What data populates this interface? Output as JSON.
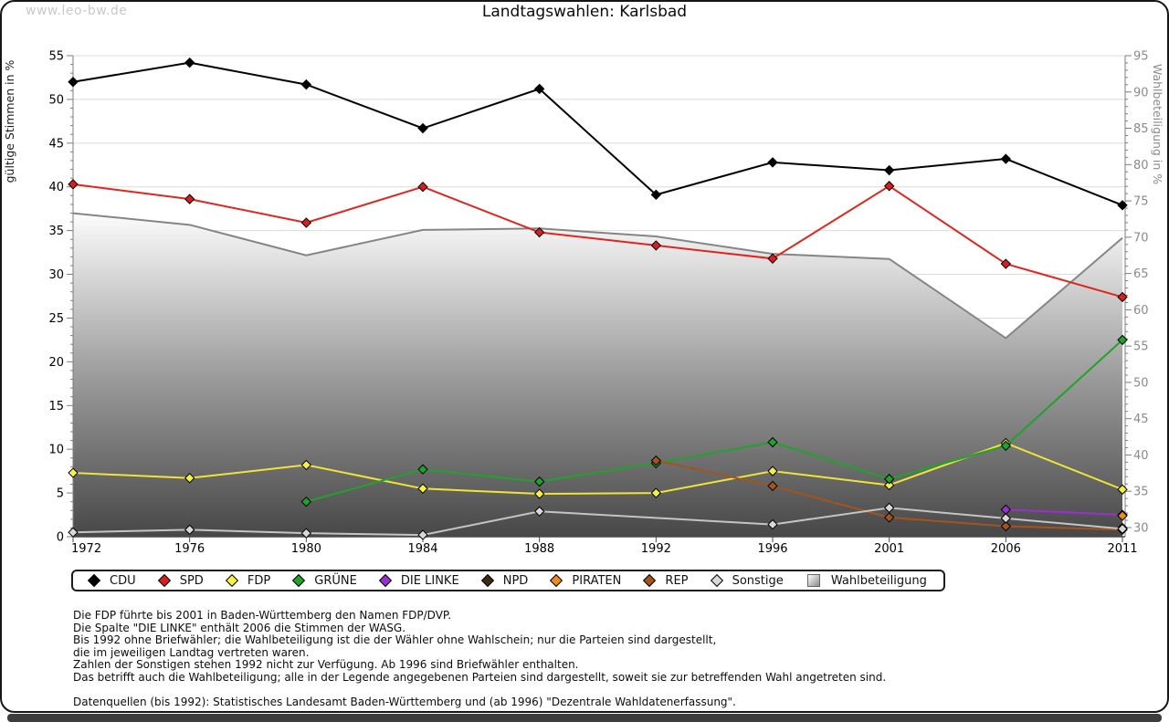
{
  "watermark": "www.leo-bw.de",
  "title": "Landtagswahlen: Karlsbad",
  "chart_data": {
    "type": "line",
    "categories": [
      "1972",
      "1976",
      "1980",
      "1984",
      "1988",
      "1992",
      "1996",
      "2001",
      "2006",
      "2011"
    ],
    "left_axis": {
      "label": "gültige Stimmen in %",
      "min": 0,
      "max": 55,
      "ticks": [
        0,
        5,
        10,
        15,
        20,
        25,
        30,
        35,
        40,
        45,
        50,
        55
      ]
    },
    "right_axis": {
      "label": "Wahlbeteiligung in %",
      "min": 30,
      "max": 95,
      "ticks": [
        30,
        35,
        40,
        45,
        50,
        55,
        60,
        65,
        70,
        75,
        80,
        85,
        90,
        95
      ]
    },
    "grid": true,
    "legend_position": "bottom",
    "series": [
      {
        "name": "CDU",
        "color": "#000000",
        "fill": "#000000",
        "axis": "left",
        "values": [
          52.0,
          54.2,
          51.7,
          46.7,
          51.2,
          39.1,
          42.8,
          41.9,
          43.2,
          37.9
        ]
      },
      {
        "name": "SPD",
        "color": "#e0251f",
        "fill": "#d81e1e",
        "axis": "left",
        "values": [
          40.3,
          38.6,
          35.9,
          40.0,
          34.8,
          33.3,
          31.8,
          40.1,
          31.2,
          27.4
        ]
      },
      {
        "name": "FDP",
        "color": "#f0e438",
        "fill": "#f8ef44",
        "axis": "left",
        "values": [
          7.3,
          6.7,
          8.2,
          5.5,
          4.9,
          5.0,
          7.5,
          5.9,
          10.7,
          5.4
        ]
      },
      {
        "name": "GRÜNE",
        "color": "#1fa32a",
        "fill": "#1fa32a",
        "axis": "left",
        "values": [
          null,
          null,
          4.0,
          7.7,
          6.3,
          8.4,
          10.8,
          6.6,
          10.4,
          22.5
        ]
      },
      {
        "name": "DIE LINKE",
        "color": "#9b30d0",
        "fill": "#9b30d0",
        "axis": "left",
        "values": [
          null,
          null,
          null,
          null,
          null,
          null,
          null,
          null,
          3.1,
          2.5
        ]
      },
      {
        "name": "NPD",
        "color": "#3f2a12",
        "fill": "#3f2a12",
        "axis": "left",
        "values": [
          null,
          null,
          null,
          null,
          null,
          null,
          null,
          null,
          null,
          1.0
        ]
      },
      {
        "name": "PIRATEN",
        "color": "#f08a1d",
        "fill": "#f08a1d",
        "axis": "left",
        "values": [
          null,
          null,
          null,
          null,
          null,
          null,
          null,
          null,
          null,
          2.4
        ]
      },
      {
        "name": "REP",
        "color": "#a3541d",
        "fill": "#a3541d",
        "axis": "left",
        "values": [
          null,
          null,
          null,
          null,
          null,
          8.7,
          5.8,
          2.2,
          1.2,
          0.8
        ]
      },
      {
        "name": "Sonstige",
        "color": "#c4c4c4",
        "fill": "#d8d8d8",
        "axis": "left",
        "values": [
          0.5,
          0.8,
          0.4,
          0.2,
          2.9,
          null,
          1.4,
          3.3,
          2.1,
          0.9
        ]
      }
    ],
    "area_series": {
      "name": "Wahlbeteiligung",
      "axis": "right",
      "line_color": "#858585",
      "gradient_top": "#ffffff",
      "gradient_mid": "#9e9e9e",
      "gradient_bottom": "#474747",
      "values": [
        73.3,
        71.7,
        67.5,
        71.0,
        71.2,
        70.1,
        67.7,
        67.0,
        56.1,
        69.9
      ]
    }
  },
  "colors": {
    "grid": "#dcdcdc",
    "axis_line": "#7d7d7d",
    "bottom_axis_line": "#4a4a4a",
    "left_tick_text": "#000000",
    "right_tick_text": "#8a8a8a",
    "watermark": "#c9c9c9"
  },
  "footnotes": [
    "Die FDP führte bis 2001 in Baden-Württemberg den Namen FDP/DVP.",
    "Die Spalte \"DIE LINKE\" enthält 2006 die Stimmen der WASG.",
    "Bis 1992 ohne Briefwähler; die Wahlbeteiligung ist die der Wähler ohne Wahlschein; nur die Parteien sind dargestellt,",
    "die im jeweiligen Landtag vertreten waren.",
    "Zahlen der Sonstigen stehen 1992 nicht zur Verfügung. Ab 1996 sind Briefwähler enthalten.",
    "Das betrifft auch die Wahlbeteiligung; alle in der Legende angegebenen Parteien sind dargestellt, soweit sie zur betreffenden Wahl angetreten sind."
  ],
  "datasource": "Datenquellen (bis 1992): Statistisches Landesamt Baden-Württemberg und (ab 1996) \"Dezentrale Wahldatenerfassung\"."
}
